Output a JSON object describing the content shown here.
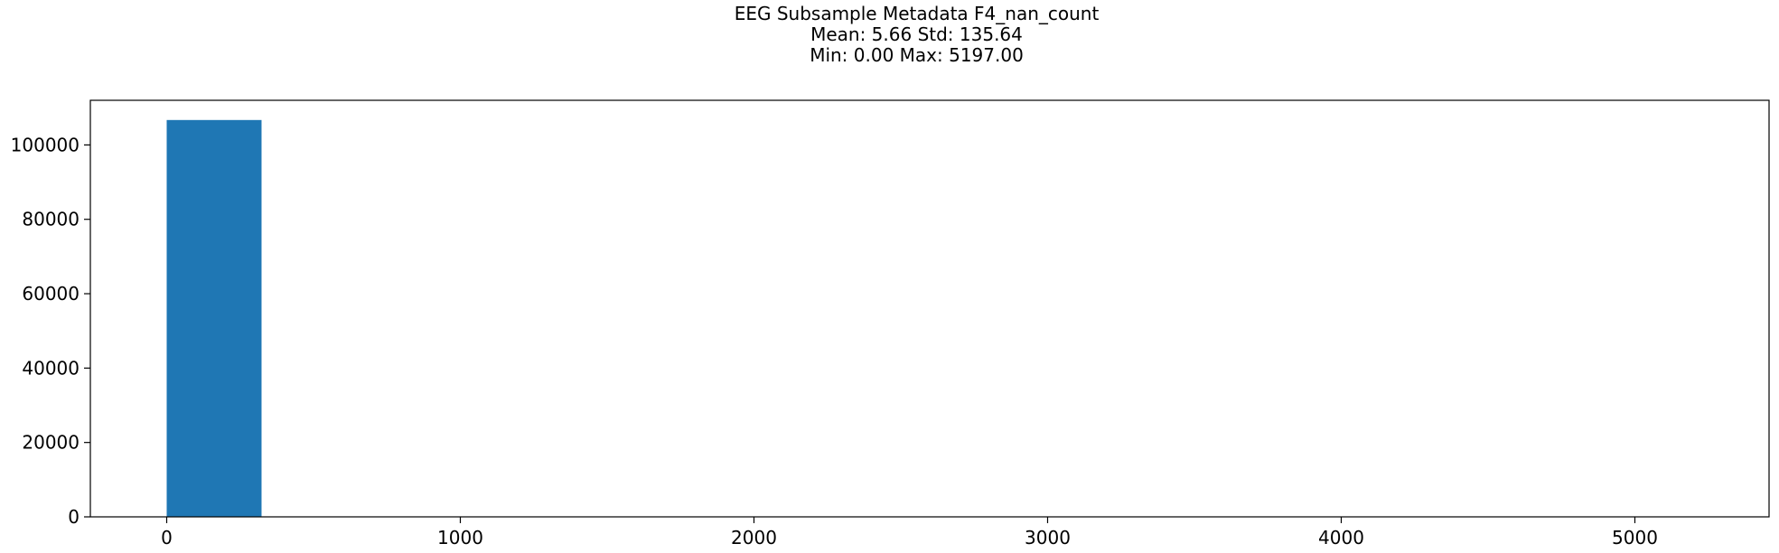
{
  "chart_data": {
    "type": "bar",
    "title_lines": [
      "EEG Subsample Metadata F4_nan_count",
      "Mean: 5.66 Std: 135.64",
      "Min: 0.00 Max: 5197.00"
    ],
    "xlabel": "",
    "ylabel": "",
    "xlim": [
      -260,
      5457
    ],
    "ylim": [
      0,
      112000
    ],
    "x_ticks": [
      0,
      1000,
      2000,
      3000,
      4000,
      5000
    ],
    "y_ticks": [
      0,
      20000,
      40000,
      60000,
      80000,
      100000
    ],
    "bins": [
      {
        "x0": 0,
        "x1": 323,
        "count": 106700
      }
    ],
    "bar_color": "#1f77b4",
    "grid": false,
    "legend": "none"
  }
}
